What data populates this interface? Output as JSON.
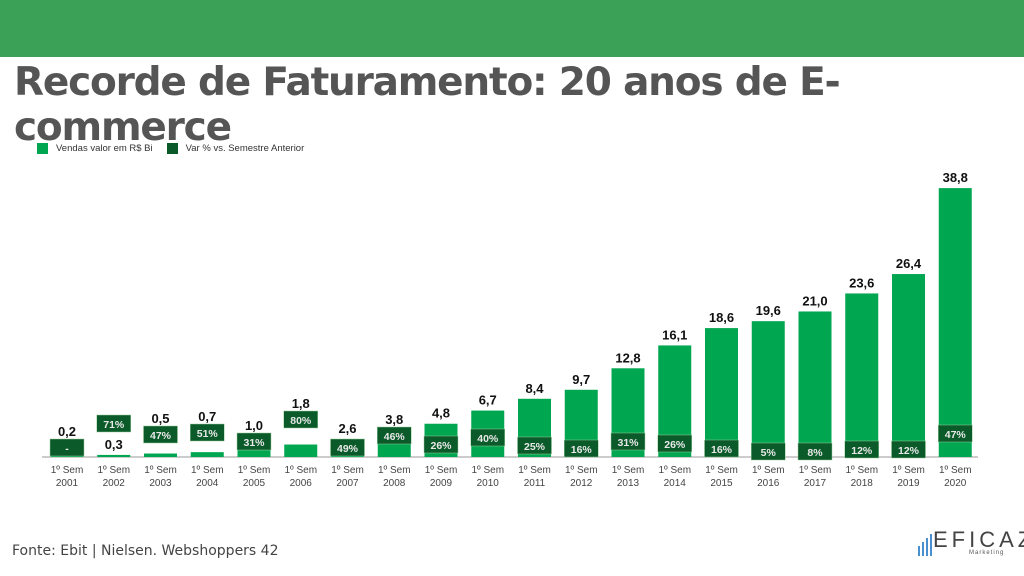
{
  "title": "Recorde de Faturamento: 20 anos de E-commerce",
  "source": "Fonte: Ebit | Nielsen. Webshoppers 42",
  "logo": {
    "text": "EFICAZ",
    "sub": "Marketing"
  },
  "colors": {
    "header": "#3aa157",
    "sales": "#00a650",
    "variation": "#0b5a2a"
  },
  "chart_data": {
    "type": "bar",
    "title": "",
    "legend_position": "top-left",
    "grid": false,
    "ylim": [
      0,
      40
    ],
    "categories": [
      "1º Sem 2001",
      "1º Sem 2002",
      "1º Sem 2003",
      "1º Sem 2004",
      "1º Sem 2005",
      "1º Sem 2006",
      "1º Sem 2007",
      "1º Sem 2008",
      "1º Sem 2009",
      "1º Sem 2010",
      "1º Sem 2011",
      "1º Sem 2012",
      "1º Sem 2013",
      "1º Sem 2014",
      "1º Sem 2015",
      "1º Sem 2016",
      "1º Sem 2017",
      "1º Sem 2018",
      "1º Sem 2019",
      "1º Sem 2020"
    ],
    "series": [
      {
        "name": "Vendas valor em R$ Bi",
        "values": [
          0.2,
          0.3,
          0.5,
          0.7,
          1.0,
          1.8,
          2.6,
          3.8,
          4.8,
          6.7,
          8.4,
          9.7,
          12.8,
          16.1,
          18.6,
          19.6,
          21.0,
          23.6,
          26.4,
          38.8
        ],
        "labels": [
          "0,2",
          "0,3",
          "0,5",
          "0,7",
          "1,0",
          "1,8",
          "2,6",
          "3,8",
          "4,8",
          "6,7",
          "8,4",
          "9,7",
          "12,8",
          "16,1",
          "18,6",
          "19,6",
          "21,0",
          "23,6",
          "26,4",
          "38,8"
        ]
      },
      {
        "name": "Var % vs. Semestre Anterior",
        "labels": [
          "-",
          "71%",
          "47%",
          "51%",
          "31%",
          "80%",
          "49%",
          "46%",
          "26%",
          "40%",
          "25%",
          "16%",
          "31%",
          "26%",
          "16%",
          "5%",
          "8%",
          "12%",
          "12%",
          "47%"
        ]
      }
    ]
  }
}
